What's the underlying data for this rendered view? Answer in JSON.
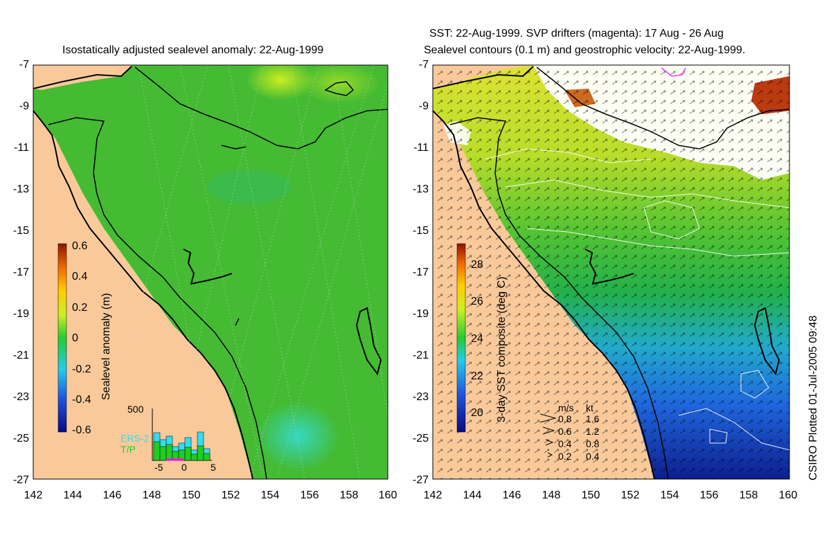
{
  "left_panel": {
    "title": "Isostatically adjusted sealevel anomaly: 22-Aug-1999",
    "colorbar_label": "Sealevel anomaly (m)",
    "colorbar_ticks": [
      "0.6",
      "0.4",
      "0.2",
      "0",
      "-0.2",
      "-0.4",
      "-0.6"
    ],
    "histogram": {
      "ymax_label": "500",
      "xticks": [
        "-5",
        "0",
        "5"
      ],
      "legend": [
        "ERS-2",
        "T/P"
      ],
      "colors": {
        "ers2": "#33ddee",
        "tp": "#22cc22"
      }
    }
  },
  "right_panel": {
    "title_line1": "SST: 22-Aug-1999. SVP drifters (magenta): 17 Aug - 26 Aug",
    "title_line2": "Sealevel contours (0.1 m) and geostrophic velocity: 22-Aug-1999.",
    "colorbar_label": "3-day SST composite (deg C)",
    "colorbar_ticks": [
      "28",
      "26",
      "24",
      "22",
      "20"
    ],
    "velocity_legend": {
      "header_ms": "m/s",
      "header_kt": "kt",
      "rows": [
        {
          "ms": "0.8",
          "kt": "1.6"
        },
        {
          "ms": "0.6",
          "kt": "1.2"
        },
        {
          "ms": "0.4",
          "kt": "0.8"
        },
        {
          "ms": "0.2",
          "kt": "0.4"
        }
      ]
    }
  },
  "axes": {
    "y_ticks": [
      "-7",
      "-9",
      "-11",
      "-13",
      "-15",
      "-17",
      "-19",
      "-21",
      "-23",
      "-25",
      "-27"
    ],
    "x_ticks": [
      "142",
      "144",
      "146",
      "148",
      "150",
      "152",
      "154",
      "156",
      "158",
      "160"
    ]
  },
  "credit": "CSIRO Plotted 01-Jul-2005 09:48",
  "colors": {
    "land": "#f9c99a",
    "ocean_anomaly": "#44bb33",
    "sst_warm": "#ccdd22",
    "sst_mid": "#22bb44",
    "sst_cool": "#2277dd",
    "sst_cold": "#112299"
  }
}
